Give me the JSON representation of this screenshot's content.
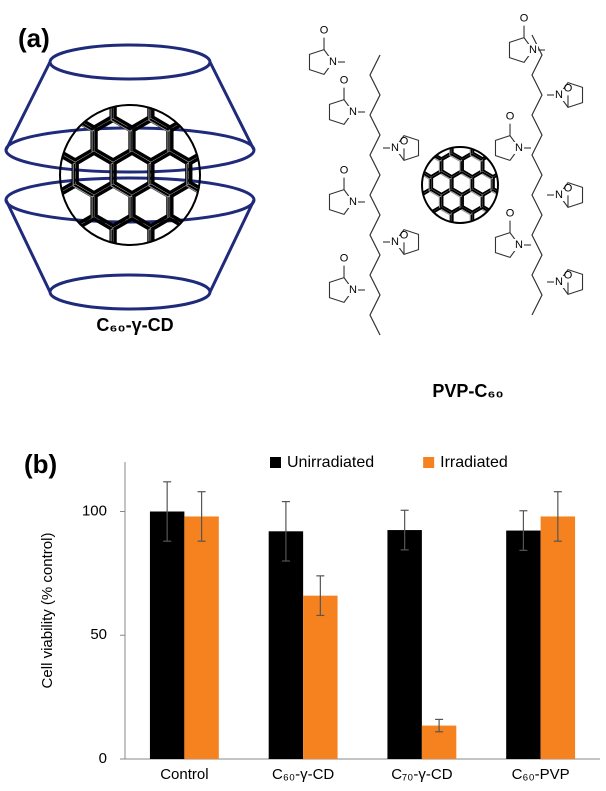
{
  "panel_a": {
    "label": "(a)",
    "left_caption": "C₆₀-γ-CD",
    "right_caption": "PVP-C₆₀",
    "atom_n": "N",
    "atom_o": "O"
  },
  "chart_data": {
    "type": "bar",
    "panel_label": "(b)",
    "ylabel": "Cell viability (% control)",
    "categories": [
      "Control",
      "C₆₀-γ-CD",
      "C₇₀-γ-CD",
      "C₆₀-PVP"
    ],
    "series": [
      {
        "name": "Unirradiated",
        "color": "#000000",
        "values": [
          100,
          92,
          92.5,
          92.3
        ],
        "errors": [
          12,
          12,
          8,
          8
        ]
      },
      {
        "name": "Irradiated",
        "color": "#f5821f",
        "values": [
          98,
          66,
          13.5,
          98
        ],
        "errors": [
          10,
          8,
          2.5,
          10
        ]
      }
    ],
    "ylim": [
      0,
      120
    ],
    "yticks": [
      0,
      50,
      100
    ],
    "legend": "top"
  }
}
